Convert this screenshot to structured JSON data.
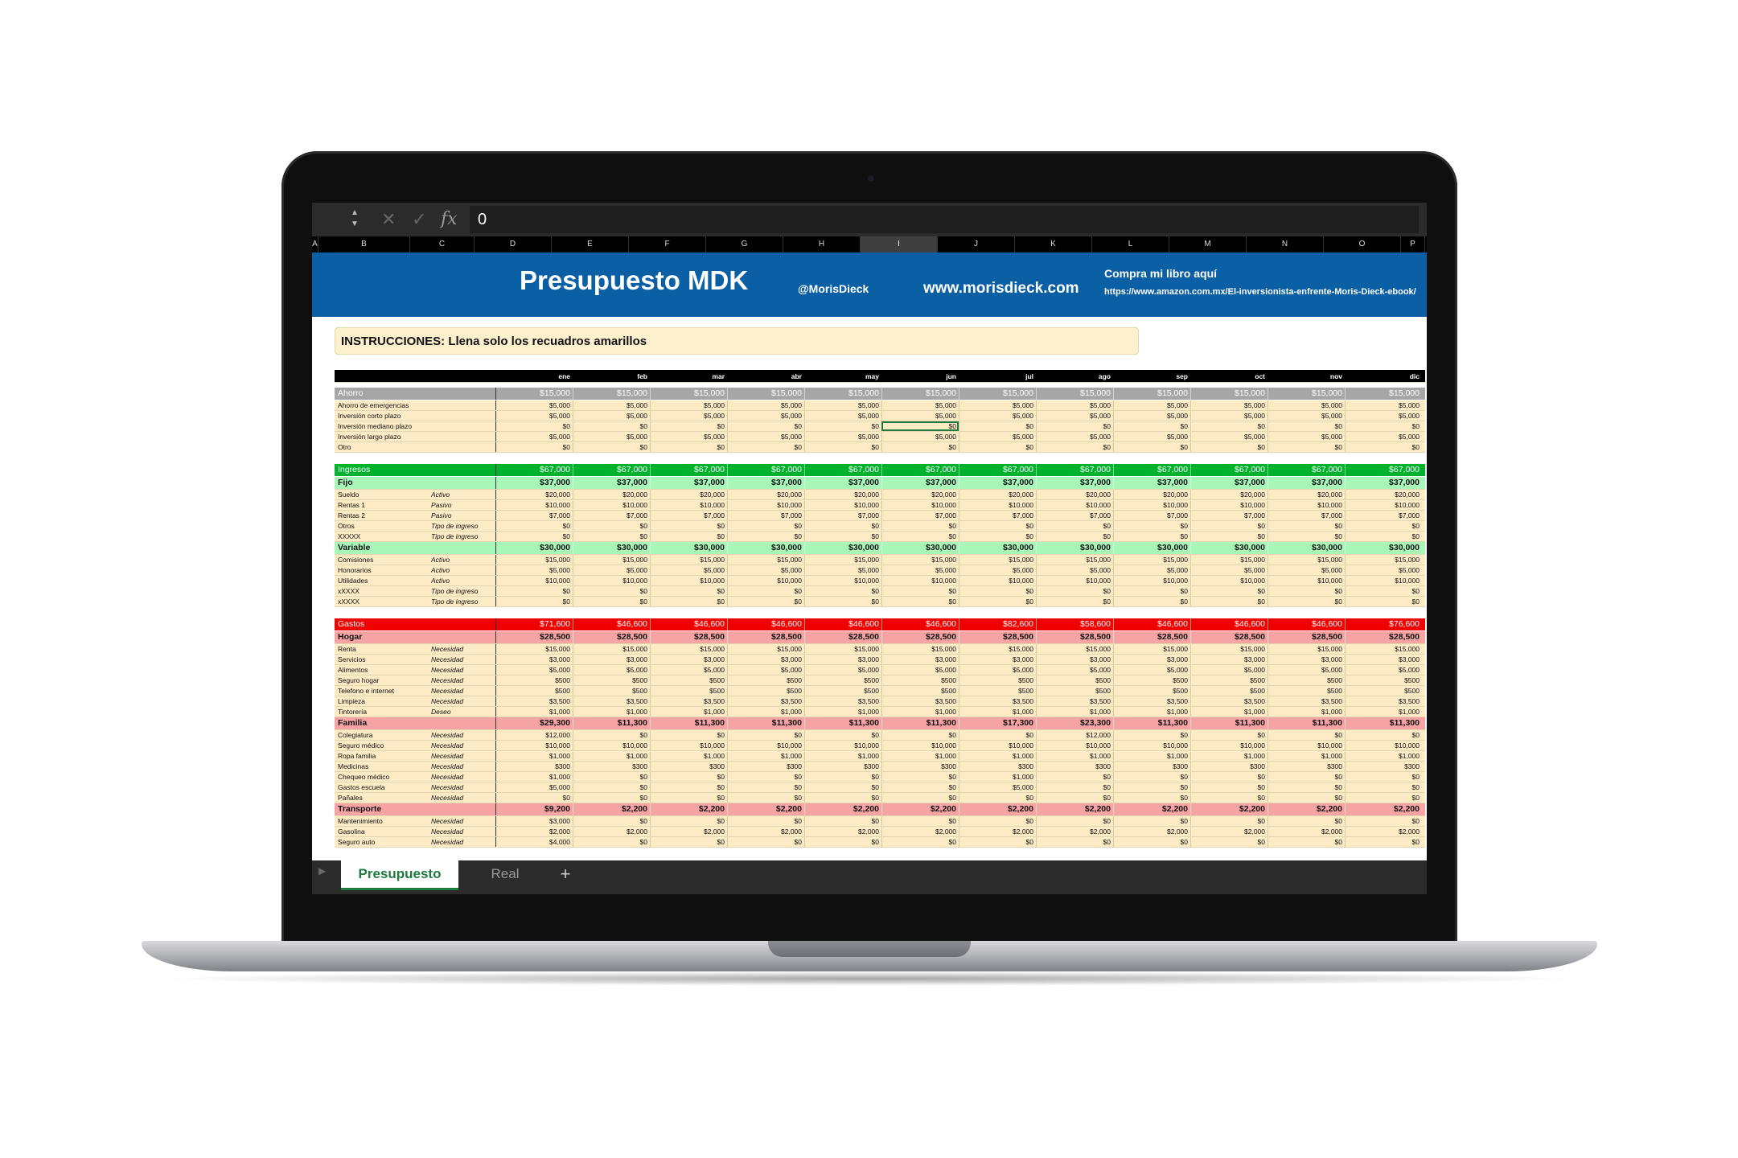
{
  "formula_bar": {
    "value": "0",
    "cancel_icon": "close-icon",
    "confirm_icon": "check-icon",
    "fx_label": "fx"
  },
  "columns": [
    "A",
    "B",
    "C",
    "D",
    "E",
    "F",
    "G",
    "H",
    "I",
    "J",
    "K",
    "L",
    "M",
    "N",
    "O",
    "P"
  ],
  "selected_column": "I",
  "banner": {
    "title": "Presupuesto MDK",
    "handle": "@MorisDieck",
    "site": "www.morisdieck.com",
    "buy_label": "Compra mi libro aquí",
    "buy_url": "https://www.amazon.com.mx/El-inversionista-enfrente-Moris-Dieck-ebook/"
  },
  "instructions": "INSTRUCCIONES: Llena solo los recuadros amarillos",
  "months": [
    "ene",
    "feb",
    "mar",
    "abr",
    "may",
    "jun",
    "jul",
    "ago",
    "sep",
    "oct",
    "nov",
    "dic"
  ],
  "colors": {
    "ahorro": "#a6a6a6",
    "ingresos": "#00b22d",
    "ingresos_sub": "#a9f7b8",
    "gastos": "#f00000",
    "gastos_sub": "#f6a3a3",
    "input": "#fcebc4",
    "banner": "#0b5fa5",
    "accent": "#1f7a3e"
  },
  "sections": [
    {
      "kind": "sec",
      "color": "ahorro",
      "label": "Ahorro",
      "type": "",
      "values": [
        "$15,000",
        "$15,000",
        "$15,000",
        "$15,000",
        "$15,000",
        "$15,000",
        "$15,000",
        "$15,000",
        "$15,000",
        "$15,000",
        "$15,000",
        "$15,000"
      ]
    },
    {
      "kind": "row",
      "label": "Ahorro de emergencias",
      "type": "",
      "values": [
        "$5,000",
        "$5,000",
        "$5,000",
        "$5,000",
        "$5,000",
        "$5,000",
        "$5,000",
        "$5,000",
        "$5,000",
        "$5,000",
        "$5,000",
        "$5,000"
      ]
    },
    {
      "kind": "row",
      "label": "Inversión corto plazo",
      "type": "",
      "values": [
        "$5,000",
        "$5,000",
        "$5,000",
        "$5,000",
        "$5,000",
        "$5,000",
        "$5,000",
        "$5,000",
        "$5,000",
        "$5,000",
        "$5,000",
        "$5,000"
      ]
    },
    {
      "kind": "row",
      "label": "Inversión mediano plazo",
      "type": "",
      "values": [
        "$0",
        "$0",
        "$0",
        "$0",
        "$0",
        "$0",
        "$0",
        "$0",
        "$0",
        "$0",
        "$0",
        "$0"
      ],
      "active_index": 5
    },
    {
      "kind": "row",
      "label": "Inversión largo plazo",
      "type": "",
      "values": [
        "$5,000",
        "$5,000",
        "$5,000",
        "$5,000",
        "$5,000",
        "$5,000",
        "$5,000",
        "$5,000",
        "$5,000",
        "$5,000",
        "$5,000",
        "$5,000"
      ]
    },
    {
      "kind": "row",
      "label": "Otro",
      "type": "",
      "values": [
        "$0",
        "$0",
        "$0",
        "$0",
        "$0",
        "$0",
        "$0",
        "$0",
        "$0",
        "$0",
        "$0",
        "$0"
      ]
    },
    {
      "kind": "gap"
    },
    {
      "kind": "sec",
      "color": "ingresos",
      "label": "Ingresos",
      "type": "",
      "values": [
        "$67,000",
        "$67,000",
        "$67,000",
        "$67,000",
        "$67,000",
        "$67,000",
        "$67,000",
        "$67,000",
        "$67,000",
        "$67,000",
        "$67,000",
        "$67,000"
      ]
    },
    {
      "kind": "sub",
      "color": "ingresos_sub",
      "label": "Fijo",
      "type": "",
      "values": [
        "$37,000",
        "$37,000",
        "$37,000",
        "$37,000",
        "$37,000",
        "$37,000",
        "$37,000",
        "$37,000",
        "$37,000",
        "$37,000",
        "$37,000",
        "$37,000"
      ]
    },
    {
      "kind": "row",
      "label": "Sueldo",
      "type": "Activo",
      "values": [
        "$20,000",
        "$20,000",
        "$20,000",
        "$20,000",
        "$20,000",
        "$20,000",
        "$20,000",
        "$20,000",
        "$20,000",
        "$20,000",
        "$20,000",
        "$20,000"
      ]
    },
    {
      "kind": "row",
      "label": "Rentas 1",
      "type": "Pasivo",
      "values": [
        "$10,000",
        "$10,000",
        "$10,000",
        "$10,000",
        "$10,000",
        "$10,000",
        "$10,000",
        "$10,000",
        "$10,000",
        "$10,000",
        "$10,000",
        "$10,000"
      ]
    },
    {
      "kind": "row",
      "label": "Rentas 2",
      "type": "Pasivo",
      "values": [
        "$7,000",
        "$7,000",
        "$7,000",
        "$7,000",
        "$7,000",
        "$7,000",
        "$7,000",
        "$7,000",
        "$7,000",
        "$7,000",
        "$7,000",
        "$7,000"
      ]
    },
    {
      "kind": "row",
      "label": "Otros",
      "type": "Tipo de ingreso",
      "values": [
        "$0",
        "$0",
        "$0",
        "$0",
        "$0",
        "$0",
        "$0",
        "$0",
        "$0",
        "$0",
        "$0",
        "$0"
      ]
    },
    {
      "kind": "row",
      "label": "XXXXX",
      "type": "Tipo de ingreso",
      "values": [
        "$0",
        "$0",
        "$0",
        "$0",
        "$0",
        "$0",
        "$0",
        "$0",
        "$0",
        "$0",
        "$0",
        "$0"
      ]
    },
    {
      "kind": "sub",
      "color": "ingresos_sub",
      "label": "Variable",
      "type": "",
      "values": [
        "$30,000",
        "$30,000",
        "$30,000",
        "$30,000",
        "$30,000",
        "$30,000",
        "$30,000",
        "$30,000",
        "$30,000",
        "$30,000",
        "$30,000",
        "$30,000"
      ]
    },
    {
      "kind": "row",
      "label": "Comisiones",
      "type": "Activo",
      "values": [
        "$15,000",
        "$15,000",
        "$15,000",
        "$15,000",
        "$15,000",
        "$15,000",
        "$15,000",
        "$15,000",
        "$15,000",
        "$15,000",
        "$15,000",
        "$15,000"
      ]
    },
    {
      "kind": "row",
      "label": "Honorarios",
      "type": "Activo",
      "values": [
        "$5,000",
        "$5,000",
        "$5,000",
        "$5,000",
        "$5,000",
        "$5,000",
        "$5,000",
        "$5,000",
        "$5,000",
        "$5,000",
        "$5,000",
        "$5,000"
      ]
    },
    {
      "kind": "row",
      "label": "Utilidades",
      "type": "Activo",
      "values": [
        "$10,000",
        "$10,000",
        "$10,000",
        "$10,000",
        "$10,000",
        "$10,000",
        "$10,000",
        "$10,000",
        "$10,000",
        "$10,000",
        "$10,000",
        "$10,000"
      ]
    },
    {
      "kind": "row",
      "label": "xXXXX",
      "type": "Tipo de ingreso",
      "values": [
        "$0",
        "$0",
        "$0",
        "$0",
        "$0",
        "$0",
        "$0",
        "$0",
        "$0",
        "$0",
        "$0",
        "$0"
      ]
    },
    {
      "kind": "row",
      "label": "xXXXX",
      "type": "Tipo de ingreso",
      "values": [
        "$0",
        "$0",
        "$0",
        "$0",
        "$0",
        "$0",
        "$0",
        "$0",
        "$0",
        "$0",
        "$0",
        "$0"
      ]
    },
    {
      "kind": "gap"
    },
    {
      "kind": "sec",
      "color": "gastos",
      "label": "Gastos",
      "type": "",
      "values": [
        "$71,600",
        "$46,600",
        "$46,600",
        "$46,600",
        "$46,600",
        "$46,600",
        "$82,600",
        "$58,600",
        "$46,600",
        "$46,600",
        "$46,600",
        "$76,600"
      ]
    },
    {
      "kind": "sub",
      "color": "gastos_sub",
      "label": "Hogar",
      "type": "",
      "values": [
        "$28,500",
        "$28,500",
        "$28,500",
        "$28,500",
        "$28,500",
        "$28,500",
        "$28,500",
        "$28,500",
        "$28,500",
        "$28,500",
        "$28,500",
        "$28,500"
      ]
    },
    {
      "kind": "row",
      "label": "Renta",
      "type": "Necesidad",
      "values": [
        "$15,000",
        "$15,000",
        "$15,000",
        "$15,000",
        "$15,000",
        "$15,000",
        "$15,000",
        "$15,000",
        "$15,000",
        "$15,000",
        "$15,000",
        "$15,000"
      ]
    },
    {
      "kind": "row",
      "label": "Servicios",
      "type": "Necesidad",
      "values": [
        "$3,000",
        "$3,000",
        "$3,000",
        "$3,000",
        "$3,000",
        "$3,000",
        "$3,000",
        "$3,000",
        "$3,000",
        "$3,000",
        "$3,000",
        "$3,000"
      ]
    },
    {
      "kind": "row",
      "label": "Alimentos",
      "type": "Necesidad",
      "values": [
        "$5,000",
        "$5,000",
        "$5,000",
        "$5,000",
        "$5,000",
        "$5,000",
        "$5,000",
        "$5,000",
        "$5,000",
        "$5,000",
        "$5,000",
        "$5,000"
      ]
    },
    {
      "kind": "row",
      "label": "Seguro hogar",
      "type": "Necesidad",
      "values": [
        "$500",
        "$500",
        "$500",
        "$500",
        "$500",
        "$500",
        "$500",
        "$500",
        "$500",
        "$500",
        "$500",
        "$500"
      ]
    },
    {
      "kind": "row",
      "label": "Telefono e internet",
      "type": "Necesidad",
      "values": [
        "$500",
        "$500",
        "$500",
        "$500",
        "$500",
        "$500",
        "$500",
        "$500",
        "$500",
        "$500",
        "$500",
        "$500"
      ]
    },
    {
      "kind": "row",
      "label": "Limpieza",
      "type": "Necesidad",
      "values": [
        "$3,500",
        "$3,500",
        "$3,500",
        "$3,500",
        "$3,500",
        "$3,500",
        "$3,500",
        "$3,500",
        "$3,500",
        "$3,500",
        "$3,500",
        "$3,500"
      ]
    },
    {
      "kind": "row",
      "label": "Tintorería",
      "type": "Deseo",
      "values": [
        "$1,000",
        "$1,000",
        "$1,000",
        "$1,000",
        "$1,000",
        "$1,000",
        "$1,000",
        "$1,000",
        "$1,000",
        "$1,000",
        "$1,000",
        "$1,000"
      ]
    },
    {
      "kind": "sub",
      "color": "gastos_sub",
      "label": "Familia",
      "type": "",
      "values": [
        "$29,300",
        "$11,300",
        "$11,300",
        "$11,300",
        "$11,300",
        "$11,300",
        "$17,300",
        "$23,300",
        "$11,300",
        "$11,300",
        "$11,300",
        "$11,300"
      ]
    },
    {
      "kind": "row",
      "label": "Colegiatura",
      "type": "Necesidad",
      "values": [
        "$12,000",
        "$0",
        "$0",
        "$0",
        "$0",
        "$0",
        "$0",
        "$12,000",
        "$0",
        "$0",
        "$0",
        "$0"
      ]
    },
    {
      "kind": "row",
      "label": "Seguro médico",
      "type": "Necesidad",
      "values": [
        "$10,000",
        "$10,000",
        "$10,000",
        "$10,000",
        "$10,000",
        "$10,000",
        "$10,000",
        "$10,000",
        "$10,000",
        "$10,000",
        "$10,000",
        "$10,000"
      ]
    },
    {
      "kind": "row",
      "label": "Ropa familia",
      "type": "Necesidad",
      "values": [
        "$1,000",
        "$1,000",
        "$1,000",
        "$1,000",
        "$1,000",
        "$1,000",
        "$1,000",
        "$1,000",
        "$1,000",
        "$1,000",
        "$1,000",
        "$1,000"
      ]
    },
    {
      "kind": "row",
      "label": "Medicinas",
      "type": "Necesidad",
      "values": [
        "$300",
        "$300",
        "$300",
        "$300",
        "$300",
        "$300",
        "$300",
        "$300",
        "$300",
        "$300",
        "$300",
        "$300"
      ]
    },
    {
      "kind": "row",
      "label": "Chequeo médico",
      "type": "Necesidad",
      "values": [
        "$1,000",
        "$0",
        "$0",
        "$0",
        "$0",
        "$0",
        "$1,000",
        "$0",
        "$0",
        "$0",
        "$0",
        "$0"
      ]
    },
    {
      "kind": "row",
      "label": "Gastos escuela",
      "type": "Necesidad",
      "values": [
        "$5,000",
        "$0",
        "$0",
        "$0",
        "$0",
        "$0",
        "$5,000",
        "$0",
        "$0",
        "$0",
        "$0",
        "$0"
      ]
    },
    {
      "kind": "row",
      "label": "Pañales",
      "type": "Necesidad",
      "values": [
        "$0",
        "$0",
        "$0",
        "$0",
        "$0",
        "$0",
        "$0",
        "$0",
        "$0",
        "$0",
        "$0",
        "$0"
      ]
    },
    {
      "kind": "sub",
      "color": "gastos_sub",
      "label": "Transporte",
      "type": "",
      "values": [
        "$9,200",
        "$2,200",
        "$2,200",
        "$2,200",
        "$2,200",
        "$2,200",
        "$2,200",
        "$2,200",
        "$2,200",
        "$2,200",
        "$2,200",
        "$2,200"
      ]
    },
    {
      "kind": "row",
      "label": "Mantenimiento",
      "type": "Necesidad",
      "values": [
        "$3,000",
        "$0",
        "$0",
        "$0",
        "$0",
        "$0",
        "$0",
        "$0",
        "$0",
        "$0",
        "$0",
        "$0"
      ]
    },
    {
      "kind": "row",
      "label": "Gasolina",
      "type": "Necesidad",
      "values": [
        "$2,000",
        "$2,000",
        "$2,000",
        "$2,000",
        "$2,000",
        "$2,000",
        "$2,000",
        "$2,000",
        "$2,000",
        "$2,000",
        "$2,000",
        "$2,000"
      ]
    },
    {
      "kind": "row",
      "label": "Seguro auto",
      "type": "Necesidad",
      "values": [
        "$4,000",
        "$0",
        "$0",
        "$0",
        "$0",
        "$0",
        "$0",
        "$0",
        "$0",
        "$0",
        "$0",
        "$0"
      ]
    }
  ],
  "tabs": {
    "active": "Presupuesto",
    "other": "Real",
    "add": "+"
  }
}
